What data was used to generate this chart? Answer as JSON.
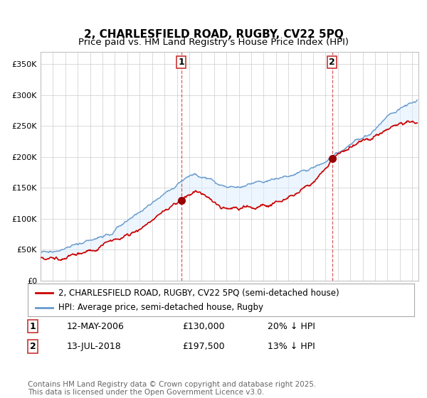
{
  "title": "2, CHARLESFIELD ROAD, RUGBY, CV22 5PQ",
  "subtitle": "Price paid vs. HM Land Registry's House Price Index (HPI)",
  "ylabel_ticks": [
    "£0",
    "£50K",
    "£100K",
    "£150K",
    "£200K",
    "£250K",
    "£300K",
    "£350K"
  ],
  "ytick_values": [
    0,
    50000,
    100000,
    150000,
    200000,
    250000,
    300000,
    350000
  ],
  "ylim": [
    0,
    370000
  ],
  "xlim_start": 1995.0,
  "xlim_end": 2025.5,
  "sale1": {
    "date_num": 2006.36,
    "price": 130000,
    "label": "1",
    "date_str": "12-MAY-2006",
    "pct": "20% ↓ HPI"
  },
  "sale2": {
    "date_num": 2018.54,
    "price": 197500,
    "label": "2",
    "date_str": "13-JUL-2018",
    "pct": "13% ↓ HPI"
  },
  "legend_line1": "2, CHARLESFIELD ROAD, RUGBY, CV22 5PQ (semi-detached house)",
  "legend_line2": "HPI: Average price, semi-detached house, Rugby",
  "footer": "Contains HM Land Registry data © Crown copyright and database right 2025.\nThis data is licensed under the Open Government Licence v3.0.",
  "line_color_red": "#cc0000",
  "line_color_blue": "#6699cc",
  "fill_color_blue": "#ddeeff",
  "sale_marker_color": "#990000",
  "vline_color": "#cc3333",
  "background_color": "#ffffff",
  "grid_color": "#cccccc",
  "title_fontsize": 11,
  "subtitle_fontsize": 9.5,
  "tick_fontsize": 8,
  "legend_fontsize": 8.5,
  "footer_fontsize": 7.5
}
